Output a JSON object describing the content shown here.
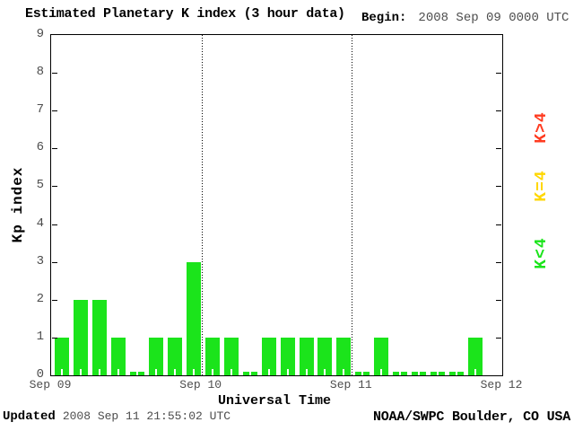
{
  "header": {
    "title": "Estimated Planetary K index (3 hour data)",
    "begin_label": "Begin:",
    "begin_value": "2008 Sep 09 0000 UTC"
  },
  "legend": {
    "items": [
      {
        "label": "K>4",
        "color": "#ff3b20"
      },
      {
        "label": "K=4",
        "color": "#ffd700"
      },
      {
        "label": "K<4",
        "color": "#1be41b"
      }
    ]
  },
  "footer": {
    "updated_label": "Updated",
    "updated_value": "2008 Sep 11 21:55:02 UTC",
    "credit": "NOAA/SWPC Boulder, CO USA"
  },
  "chart_data": {
    "type": "bar",
    "title": "Estimated Planetary K index (3 hour data)",
    "xlabel": "Universal Time",
    "ylabel": "Kp index",
    "ylim": [
      0,
      9
    ],
    "y_ticks": [
      0,
      1,
      2,
      3,
      4,
      5,
      6,
      7,
      8,
      9
    ],
    "x_tick_labels": [
      "Sep 09",
      "Sep 10",
      "Sep 11",
      "Sep 12"
    ],
    "interval_hours": 3,
    "bar_color": "#1be41b",
    "grid": "vertical dotted lines at day boundaries",
    "legend_position": "right, rotated 90deg",
    "values": [
      1,
      2,
      2,
      1,
      0,
      1,
      1,
      3,
      1,
      1,
      0,
      1,
      1,
      1,
      1,
      1,
      0,
      1,
      0,
      0,
      0,
      0,
      1,
      null
    ],
    "values_by_day": {
      "Sep 09": [
        1,
        2,
        2,
        1,
        0,
        1,
        1,
        3
      ],
      "Sep 10": [
        1,
        1,
        0,
        1,
        1,
        1,
        1,
        1
      ],
      "Sep 11": [
        0,
        1,
        0,
        0,
        0,
        0,
        1,
        null
      ]
    }
  }
}
